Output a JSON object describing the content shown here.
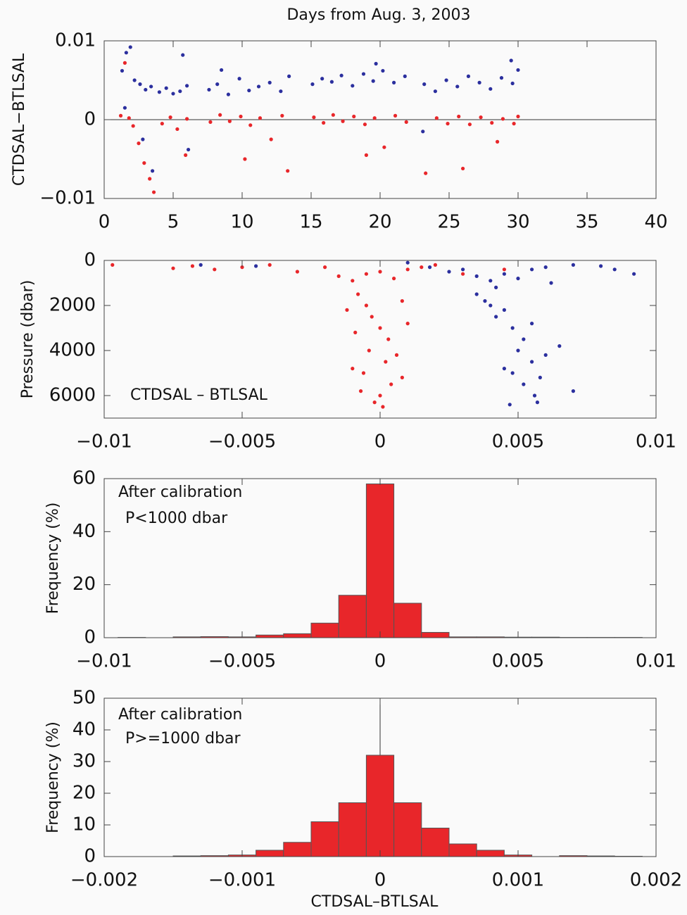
{
  "chart_data": [
    {
      "type": "scatter",
      "title": "Days from Aug. 3, 2003",
      "y_label": "CTDSAL−BTLSAL",
      "xlim": [
        0,
        40
      ],
      "xticks": [
        0,
        5,
        10,
        15,
        20,
        25,
        30,
        35,
        40
      ],
      "ylim": [
        -0.01,
        0.01
      ],
      "yticks": [
        {
          "value": -0.01,
          "label": "−0.01"
        },
        0,
        0.01
      ],
      "zero_line": "y",
      "series": [
        {
          "color": "#2b2f9e",
          "x": [
            1.3,
            1.6,
            1.9,
            2.2,
            2.6,
            3,
            3.4,
            4,
            4.5,
            5,
            5.5,
            6,
            5.7,
            1.5,
            2.8,
            3.5,
            6.1,
            7.6,
            8.2,
            9,
            9.8,
            10.5,
            11.2,
            12,
            12.8,
            13.4,
            8.5,
            15.1,
            15.8,
            16.5,
            17.2,
            18,
            18.8,
            19.5,
            20.2,
            21,
            21.8,
            19.7,
            23.2,
            24,
            24.8,
            25.6,
            26.4,
            27.2,
            28,
            28.8,
            29.6,
            30,
            29.5,
            23.1
          ],
          "values": [
            0.0062,
            0.0085,
            0.0092,
            0.005,
            0.0045,
            0.0038,
            0.0042,
            0.0035,
            0.004,
            0.0033,
            0.0036,
            0.0043,
            0.0082,
            0.0015,
            -0.0025,
            -0.0065,
            -0.0038,
            0.0038,
            0.0045,
            0.0032,
            0.0052,
            0.0037,
            0.0042,
            0.0047,
            0.0036,
            0.0055,
            0.0063,
            0.0045,
            0.0052,
            0.0048,
            0.0056,
            0.0043,
            0.0058,
            0.0049,
            0.0062,
            0.0047,
            0.0055,
            0.0071,
            0.0045,
            0.0036,
            0.005,
            0.0042,
            0.0055,
            0.0047,
            0.0039,
            0.0053,
            0.0046,
            0.0063,
            0.0075,
            -0.0015
          ]
        },
        {
          "color": "#e8262a",
          "x": [
            1.2,
            1.5,
            1.8,
            2.1,
            2.5,
            2.9,
            3.3,
            3.6,
            4.2,
            4.8,
            5.3,
            5.9,
            6,
            7.7,
            8.4,
            9.1,
            9.9,
            10.6,
            11.3,
            12.1,
            12.9,
            13.3,
            10.2,
            15.2,
            15.9,
            16.6,
            17.3,
            18.1,
            18.9,
            19.6,
            20.3,
            21.1,
            21.9,
            19,
            23.3,
            24.1,
            24.9,
            25.7,
            26.5,
            27.3,
            28.1,
            28.9,
            29.7,
            30,
            26,
            28.5
          ],
          "values": [
            0.0005,
            0.0072,
            0.0002,
            -0.0008,
            -0.003,
            -0.0055,
            -0.0075,
            -0.0092,
            -0.0005,
            0.0003,
            -0.0012,
            -0.0045,
            0.0001,
            -0.0003,
            0.0006,
            -0.0002,
            0.0004,
            -0.0007,
            0.0002,
            -0.0025,
            0.0005,
            -0.0065,
            -0.005,
            0.0003,
            -0.0004,
            0.0006,
            -0.0002,
            0.0004,
            -0.0006,
            0.0002,
            -0.0035,
            0.0005,
            -0.0003,
            -0.0045,
            -0.0068,
            0.0002,
            -0.0005,
            0.0004,
            -0.0006,
            0.0003,
            -0.0004,
            0.0001,
            -0.0005,
            0.0004,
            -0.0062,
            -0.0028
          ]
        }
      ]
    },
    {
      "type": "scatter",
      "y_label": "Pressure (dbar)",
      "annotations": [
        "CTDSAL – BTLSAL"
      ],
      "xlim": [
        -0.01,
        0.01
      ],
      "xticks": [
        {
          "value": -0.01,
          "label": "−0.01"
        },
        {
          "value": -0.005,
          "label": "−0.005"
        },
        0,
        0.005,
        0.01
      ],
      "ylim": [
        7000,
        0
      ],
      "yticks": [
        0,
        2000,
        4000,
        6000
      ],
      "series": [
        {
          "color": "#e8262a",
          "x": [
            -0.0097,
            -0.0075,
            -0.0068,
            -0.006,
            -0.005,
            -0.004,
            -0.003,
            -0.002,
            -0.0015,
            -0.001,
            -0.0008,
            -0.0005,
            -0.0003,
            0,
            0.0003,
            -0.0004,
            0.0002,
            -0.0006,
            0.0004,
            0,
            -0.0002,
            0.0001,
            0.0008,
            -0.0012,
            0.001,
            -0.0009,
            0.0006,
            -0.001,
            0.0008,
            -0.0007,
            0,
            0.0005,
            -0.0005,
            0.001,
            0.0015,
            0.002,
            0.0045,
            0.003
          ],
          "values": [
            200,
            350,
            250,
            400,
            300,
            200,
            500,
            300,
            700,
            900,
            1500,
            2000,
            2500,
            3000,
            3500,
            4000,
            4500,
            5000,
            5500,
            6000,
            6300,
            6500,
            1800,
            2200,
            2800,
            3200,
            4200,
            4800,
            5200,
            5800,
            500,
            800,
            600,
            400,
            300,
            200,
            400,
            600
          ]
        },
        {
          "color": "#2b2f9e",
          "x": [
            0.001,
            0.0018,
            0.0025,
            0.003,
            0.0035,
            0.004,
            0.0045,
            0.005,
            0.0055,
            0.006,
            0.007,
            0.008,
            0.0085,
            0.0092,
            0.0035,
            0.004,
            0.0042,
            0.0048,
            0.0052,
            0.005,
            0.0055,
            0.0048,
            0.0052,
            0.0056,
            0.0047,
            0.0057,
            0.007,
            0.006,
            0.0065,
            0.0045,
            0.0058,
            0.0038,
            0.0045,
            0.0055,
            -0.0045,
            -0.0065,
            0.0042,
            0.0062
          ],
          "values": [
            100,
            300,
            500,
            400,
            700,
            900,
            600,
            800,
            400,
            300,
            200,
            250,
            400,
            600,
            1500,
            2000,
            2500,
            3000,
            3500,
            4000,
            4500,
            5000,
            5500,
            6000,
            6400,
            6300,
            5800,
            4200,
            3800,
            4800,
            5200,
            1800,
            2200,
            2800,
            250,
            200,
            1200,
            1000
          ]
        }
      ]
    },
    {
      "type": "histogram",
      "y_label": "Frequency (%)",
      "annotations": [
        "After calibration",
        "P<1000 dbar"
      ],
      "color": "#e8262a",
      "zero_line": "x",
      "xlim": [
        -0.01,
        0.01
      ],
      "xticks": [
        {
          "value": -0.01,
          "label": "−0.01"
        },
        {
          "value": -0.005,
          "label": "−0.005"
        },
        0,
        0.005,
        0.01
      ],
      "ylim": [
        0,
        60
      ],
      "yticks": [
        0,
        20,
        40,
        60
      ],
      "bins": [
        -0.0095,
        -0.0085,
        -0.0075,
        -0.0065,
        -0.0055,
        -0.0045,
        -0.0035,
        -0.0025,
        -0.0015,
        -0.0005,
        0.0005,
        0.0015,
        0.0025,
        0.0035,
        0.0045,
        0.0055,
        0.0065,
        0.0075,
        0.0085,
        0.0095
      ],
      "values": [
        0.1,
        0,
        0.3,
        0.4,
        0.3,
        1,
        1.5,
        5.5,
        16,
        58,
        13,
        2,
        0.3,
        0.3,
        0.2,
        0.2,
        0.1,
        0.1,
        0.1
      ]
    },
    {
      "type": "histogram",
      "y_label": "Frequency (%)",
      "x_label": "CTDSAL–BTLSAL",
      "annotations": [
        "After calibration",
        "P>=1000 dbar"
      ],
      "color": "#e8262a",
      "zero_line": "x",
      "xlim": [
        -0.002,
        0.002
      ],
      "xticks": [
        {
          "value": -0.002,
          "label": "−0.002"
        },
        {
          "value": -0.001,
          "label": "−0.001"
        },
        0,
        0.001,
        0.002
      ],
      "ylim": [
        0,
        50
      ],
      "yticks": [
        0,
        10,
        20,
        30,
        40,
        50
      ],
      "bins": [
        -0.0019,
        -0.0017,
        -0.0015,
        -0.0013,
        -0.0011,
        -0.0009,
        -0.0007,
        -0.0005,
        -0.0003,
        -0.0001,
        0.0001,
        0.0003,
        0.0005,
        0.0007,
        0.0009,
        0.0011,
        0.0013,
        0.0015,
        0.0017,
        0.0019
      ],
      "values": [
        0,
        0,
        0.2,
        0.3,
        0.5,
        2,
        4.5,
        11,
        17,
        32,
        17,
        9,
        4,
        2,
        0.5,
        0,
        0.3,
        0.2,
        0.1
      ]
    }
  ]
}
